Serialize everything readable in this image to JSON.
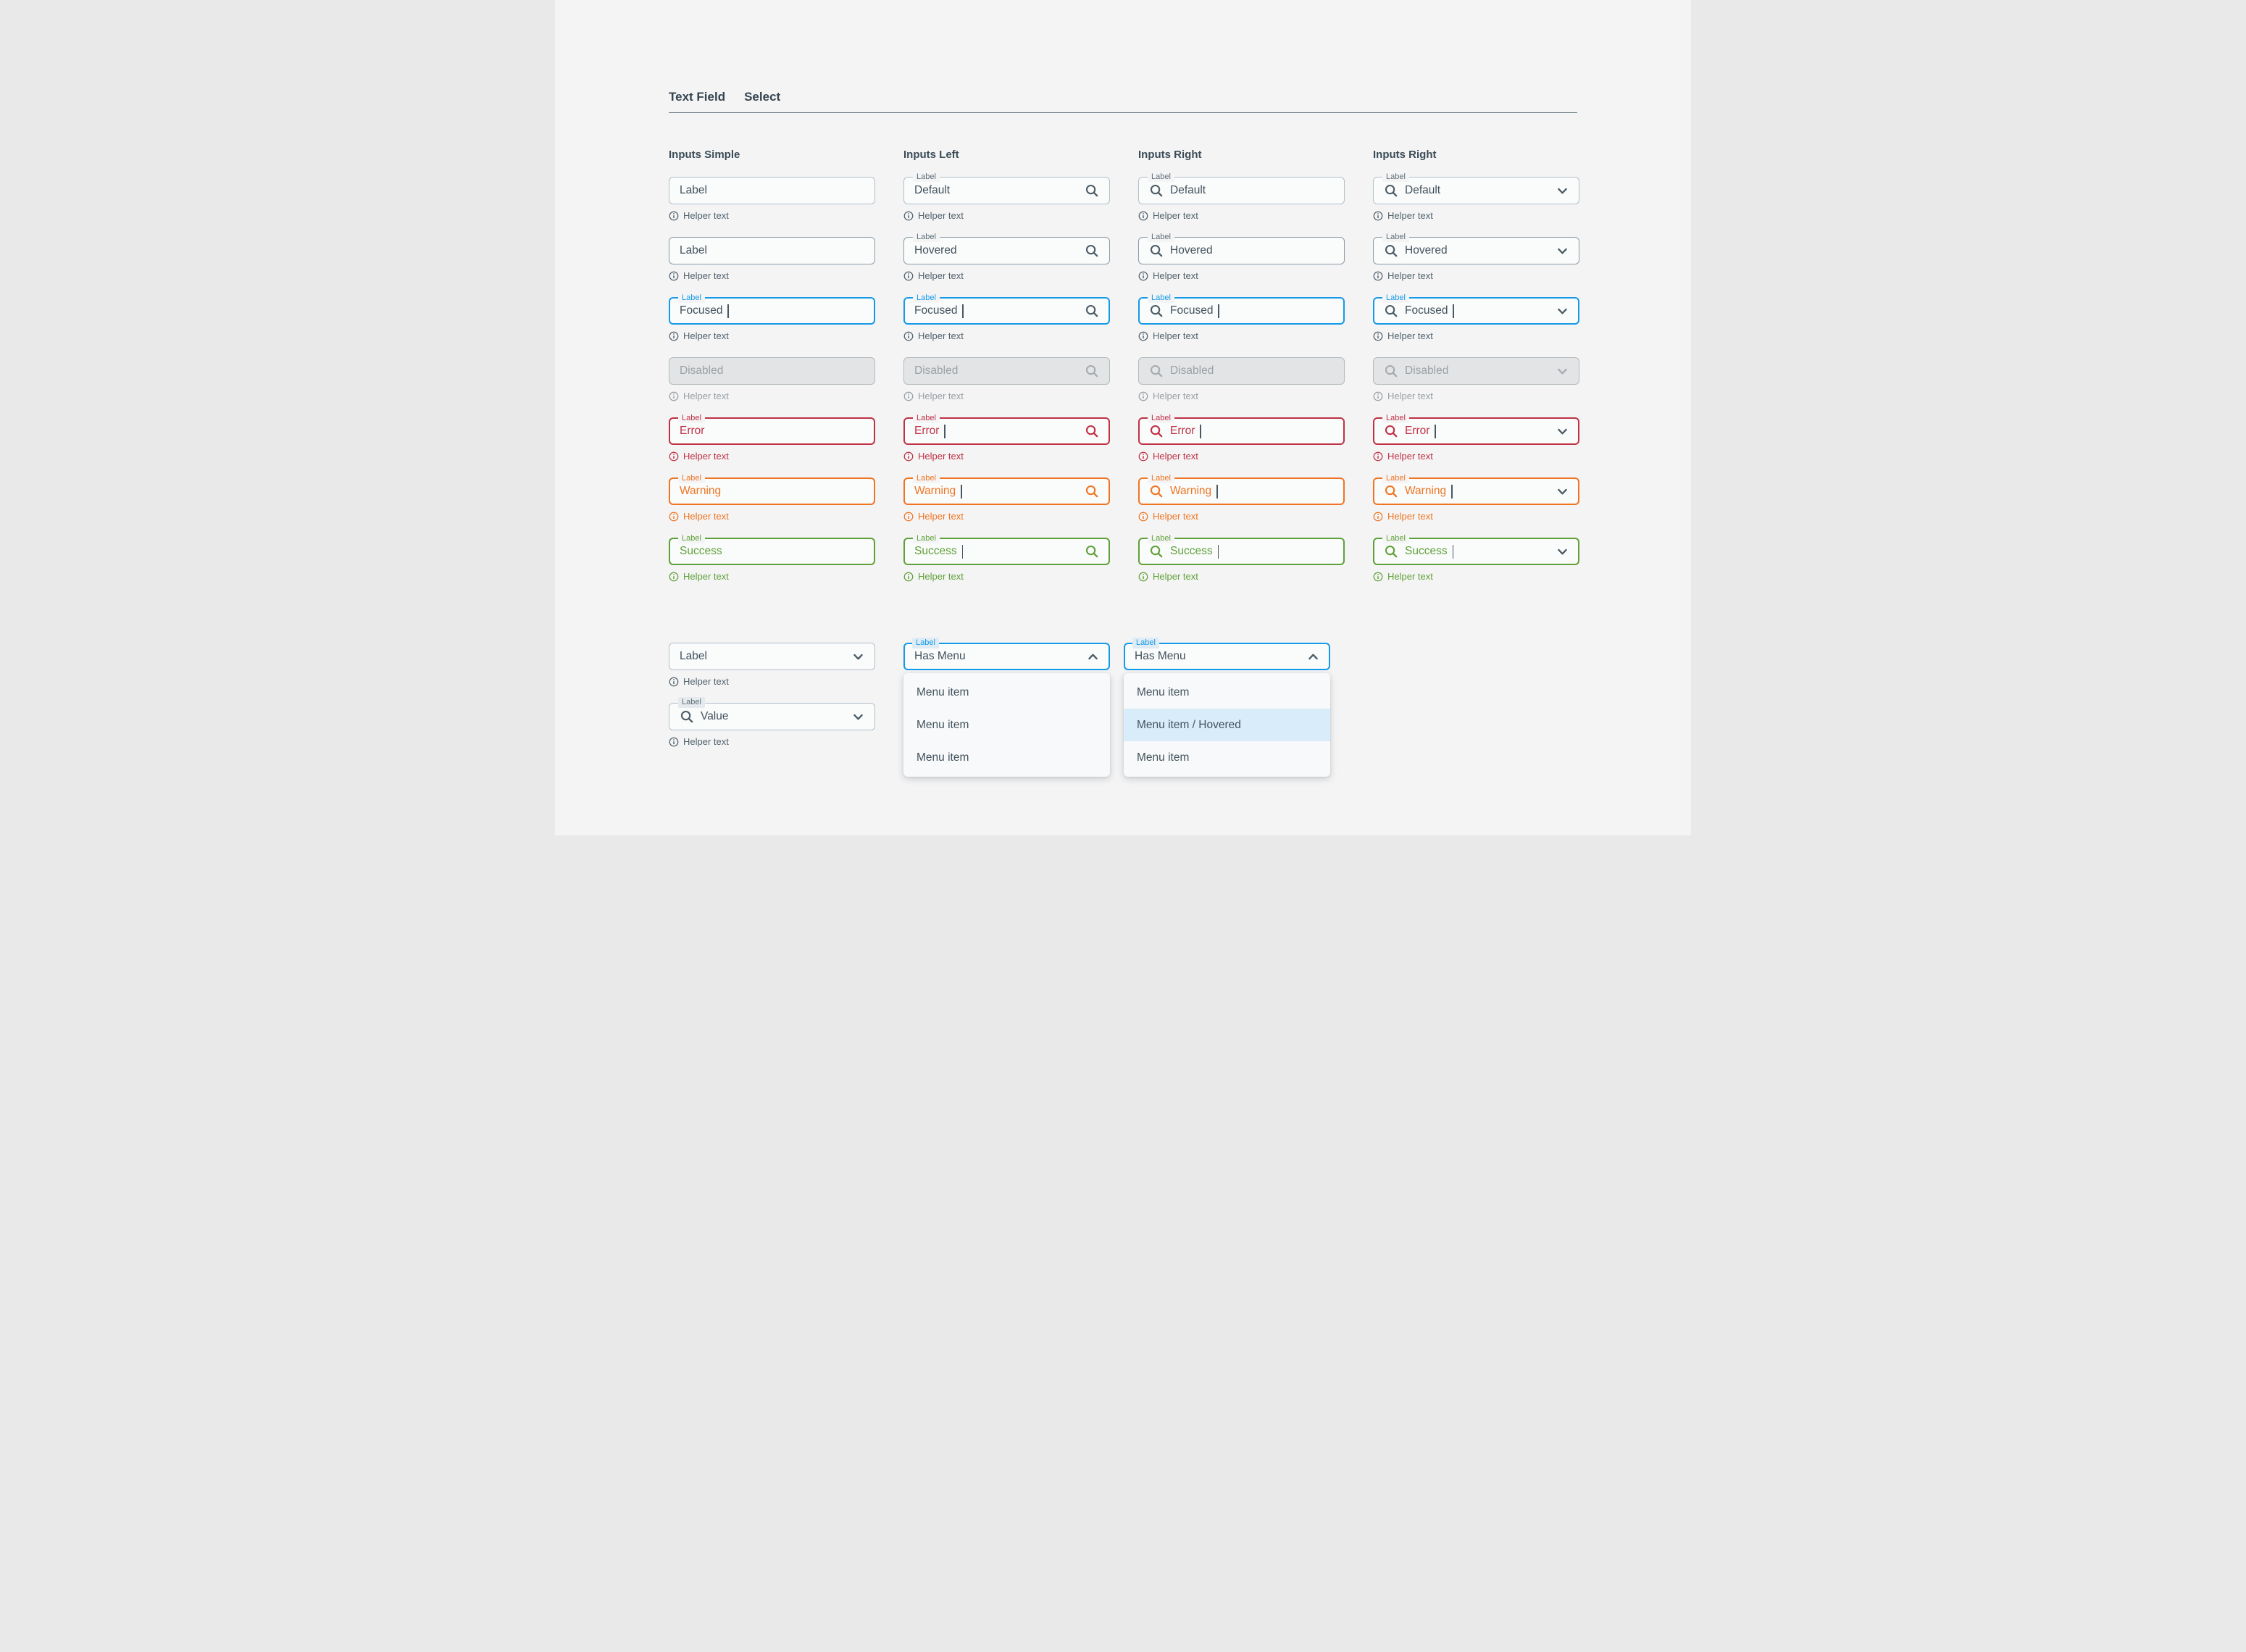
{
  "tabs": [
    {
      "label": "Text Field"
    },
    {
      "label": "Select"
    }
  ],
  "field_label": "Label",
  "helper_text": "Helper text",
  "colors": {
    "accent_blue": "#149ae8",
    "error_red": "#bf3145",
    "warning_orange": "#ef7523",
    "success_green": "#5fa138",
    "text_slate": "#41525d",
    "border_default": "#b3c0c8",
    "border_hover": "#8d9ca6",
    "disabled_bg": "#e3e4e6",
    "menu_hover_bg": "#d8ecf9",
    "page_bg": "#f4f4f5"
  },
  "columns": [
    {
      "title": "Inputs Simple",
      "icon": "none",
      "chevron": false,
      "rows": [
        {
          "value": "Label",
          "state": "default",
          "label": false,
          "cursor": false
        },
        {
          "value": "Label",
          "state": "hovered",
          "label": false,
          "cursor": false
        },
        {
          "value": "Focused",
          "state": "focused",
          "label": true,
          "cursor": true
        },
        {
          "value": "Disabled",
          "state": "disabled",
          "label": false,
          "cursor": false
        },
        {
          "value": "Error",
          "state": "error",
          "label": true,
          "cursor": false
        },
        {
          "value": "Warning",
          "state": "warning",
          "label": true,
          "cursor": false
        },
        {
          "value": "Success",
          "state": "success",
          "label": true,
          "cursor": false
        }
      ]
    },
    {
      "title": "Inputs Left",
      "icon": "right",
      "chevron": false,
      "rows": [
        {
          "value": "Default",
          "state": "default",
          "label": true,
          "cursor": false
        },
        {
          "value": "Hovered",
          "state": "hovered",
          "label": true,
          "cursor": false
        },
        {
          "value": "Focused",
          "state": "focused",
          "label": true,
          "cursor": true
        },
        {
          "value": "Disabled",
          "state": "disabled",
          "label": false,
          "cursor": false
        },
        {
          "value": "Error",
          "state": "error",
          "label": true,
          "cursor": true
        },
        {
          "value": "Warning",
          "state": "warning",
          "label": true,
          "cursor": true
        },
        {
          "value": "Success",
          "state": "success",
          "label": true,
          "cursor": true
        }
      ]
    },
    {
      "title": "Inputs Right",
      "icon": "left",
      "chevron": false,
      "rows": [
        {
          "value": "Default",
          "state": "default",
          "label": true,
          "cursor": false
        },
        {
          "value": "Hovered",
          "state": "hovered",
          "label": true,
          "cursor": false
        },
        {
          "value": "Focused",
          "state": "focused",
          "label": true,
          "cursor": true
        },
        {
          "value": "Disabled",
          "state": "disabled",
          "label": false,
          "cursor": false
        },
        {
          "value": "Error",
          "state": "error",
          "label": true,
          "cursor": true
        },
        {
          "value": "Warning",
          "state": "warning",
          "label": true,
          "cursor": true
        },
        {
          "value": "Success",
          "state": "success",
          "label": true,
          "cursor": true
        }
      ]
    },
    {
      "title": "Inputs Right",
      "icon": "left",
      "chevron": true,
      "rows": [
        {
          "value": "Default",
          "state": "default",
          "label": true,
          "cursor": false
        },
        {
          "value": "Hovered",
          "state": "hovered",
          "label": true,
          "cursor": false
        },
        {
          "value": "Focused",
          "state": "focused",
          "label": true,
          "cursor": true
        },
        {
          "value": "Disabled",
          "state": "disabled",
          "label": false,
          "cursor": false
        },
        {
          "value": "Error",
          "state": "error",
          "label": true,
          "cursor": true
        },
        {
          "value": "Warning",
          "state": "warning",
          "label": true,
          "cursor": true
        },
        {
          "value": "Success",
          "state": "success",
          "label": true,
          "cursor": true
        }
      ]
    }
  ],
  "bottom": {
    "selects": [
      {
        "value": "Label",
        "label": false,
        "chip": false,
        "icon": "none",
        "chevron": "down"
      },
      {
        "value": "Value",
        "label": true,
        "chip": true,
        "icon": "left",
        "chevron": "down"
      }
    ],
    "menus": [
      {
        "value": "Has Menu",
        "chevron": "up",
        "hover_index": -1,
        "items": [
          "Menu item",
          "Menu item",
          "Menu item"
        ]
      },
      {
        "value": "Has Menu",
        "chevron": "up",
        "hover_index": 1,
        "items": [
          "Menu item",
          "Menu item / Hovered",
          "Menu item"
        ]
      }
    ]
  }
}
